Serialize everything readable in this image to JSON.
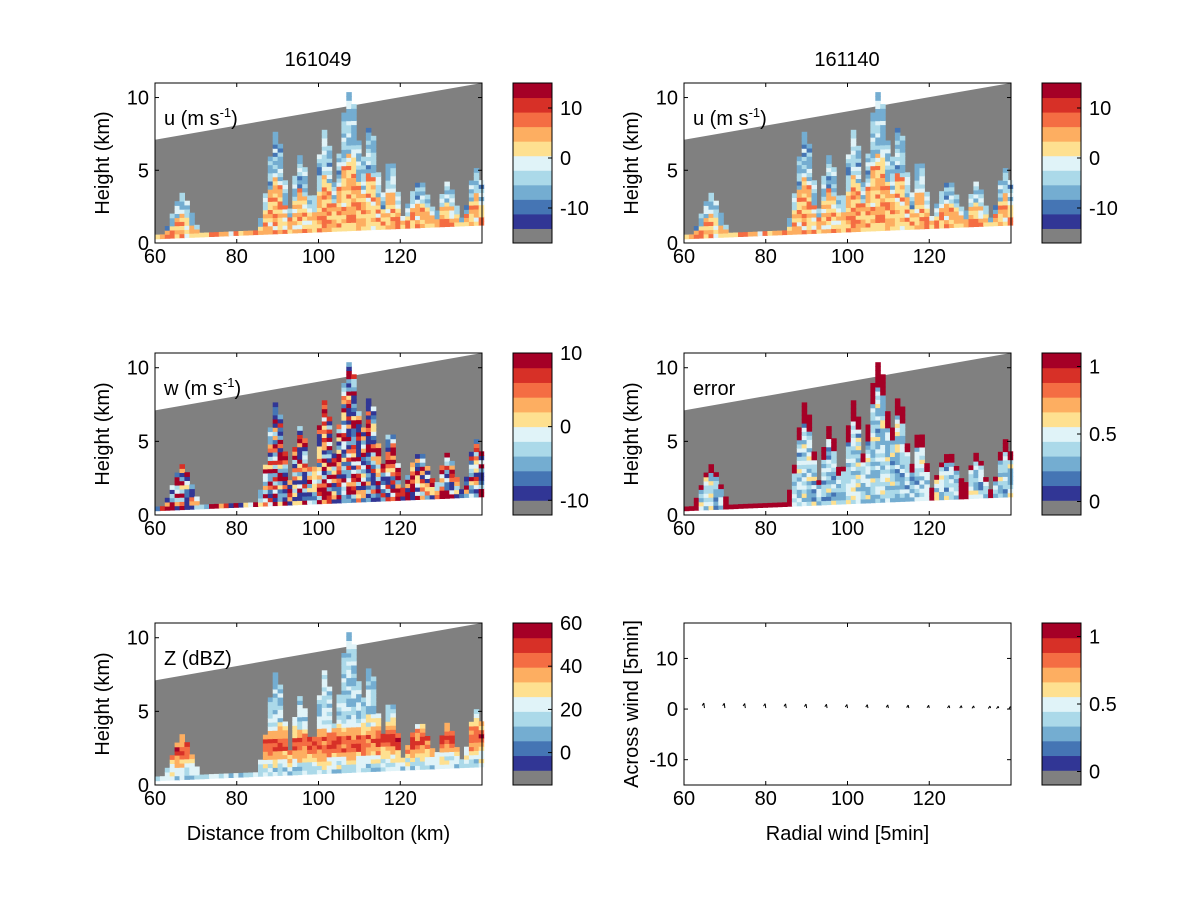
{
  "figure": {
    "column_titles": [
      "161049",
      "161140"
    ]
  },
  "colors": {
    "scale": [
      "#313695",
      "#4575b4",
      "#74add1",
      "#abd9e9",
      "#e0f3f8",
      "#fee090",
      "#fdae61",
      "#f46d43",
      "#d73027",
      "#a50026"
    ],
    "missing": "#808080",
    "mask": "#808080"
  },
  "chart_data": [
    {
      "type": "heatmap",
      "panel": "u-161049",
      "label": "u (m s",
      "label_sup": "-1",
      "label_close": ")",
      "ylabel": "Height (km)",
      "xlabel": "",
      "xlim": [
        60,
        140
      ],
      "ylim": [
        0,
        11
      ],
      "xticks": [
        "60",
        "80",
        "100",
        "120"
      ],
      "yticks": [
        "0",
        "5",
        "10"
      ],
      "colorbar": {
        "lim": [
          -17,
          15
        ],
        "ticks": [
          "10",
          "0",
          "-10"
        ],
        "tick_values": [
          10,
          0,
          -10
        ]
      }
    },
    {
      "type": "heatmap",
      "panel": "u-161140",
      "label": "u (m s",
      "label_sup": "-1",
      "label_close": ")",
      "ylabel": "Height (km)",
      "xlabel": "",
      "xlim": [
        60,
        140
      ],
      "ylim": [
        0,
        11
      ],
      "xticks": [
        "60",
        "80",
        "100",
        "120"
      ],
      "yticks": [
        "0",
        "5",
        "10"
      ],
      "colorbar": {
        "lim": [
          -17,
          15
        ],
        "ticks": [
          "10",
          "0",
          "-10"
        ],
        "tick_values": [
          10,
          0,
          -10
        ]
      }
    },
    {
      "type": "heatmap",
      "panel": "w-161049",
      "label": "w (m s",
      "label_sup": "-1",
      "label_close": ")",
      "ylabel": "Height (km)",
      "xlabel": "",
      "xlim": [
        60,
        140
      ],
      "ylim": [
        0,
        11
      ],
      "xticks": [
        "60",
        "80",
        "100",
        "120"
      ],
      "yticks": [
        "0",
        "5",
        "10"
      ],
      "colorbar": {
        "lim": [
          -12,
          10
        ],
        "ticks": [
          "10",
          "0",
          "-10"
        ],
        "tick_values": [
          10,
          0,
          -10
        ]
      }
    },
    {
      "type": "heatmap",
      "panel": "error-161140",
      "label": "error",
      "label_sup": "",
      "label_close": "",
      "ylabel": "Height (km)",
      "xlabel": "",
      "xlim": [
        60,
        140
      ],
      "ylim": [
        0,
        11
      ],
      "xticks": [
        "60",
        "80",
        "100",
        "120"
      ],
      "yticks": [
        "0",
        "5",
        "10"
      ],
      "colorbar": {
        "lim": [
          -0.1,
          1.1
        ],
        "ticks": [
          "1",
          "0.5",
          "0"
        ],
        "tick_values": [
          1,
          0.5,
          0
        ]
      }
    },
    {
      "type": "heatmap",
      "panel": "Z-161049",
      "label": "Z (dBZ)",
      "label_sup": "",
      "label_close": "",
      "ylabel": "Height (km)",
      "xlabel": "Distance from Chilbolton (km)",
      "xlim": [
        60,
        140
      ],
      "ylim": [
        0,
        11
      ],
      "xticks": [
        "60",
        "80",
        "100",
        "120"
      ],
      "yticks": [
        "0",
        "5",
        "10"
      ],
      "colorbar": {
        "lim": [
          -15,
          60
        ],
        "ticks": [
          "60",
          "40",
          "20",
          "0"
        ],
        "tick_values": [
          60,
          40,
          20,
          0
        ]
      }
    },
    {
      "type": "scatter",
      "panel": "wind-vectors",
      "label": "",
      "label_sup": "",
      "label_close": "",
      "ylabel": "Across wind [5min]",
      "xlabel": "Radial wind [5min]",
      "xlim": [
        60,
        140
      ],
      "ylim": [
        -15,
        17
      ],
      "xticks": [
        "60",
        "80",
        "100",
        "120"
      ],
      "yticks": [
        "-10",
        "0",
        "10"
      ],
      "x": [
        65,
        70,
        75,
        80,
        85,
        90,
        95,
        100,
        105,
        110,
        115,
        120,
        125,
        128,
        131,
        135,
        137,
        140
      ],
      "y": [
        0,
        0,
        0,
        0,
        0,
        0,
        0,
        0,
        0,
        0,
        0,
        0,
        0,
        0,
        0,
        0,
        0,
        0
      ],
      "colorbar": {
        "lim": [
          -0.1,
          1.1
        ],
        "ticks": [
          "1",
          "0.5",
          "0"
        ],
        "tick_values": [
          1,
          0.5,
          0
        ]
      }
    }
  ]
}
